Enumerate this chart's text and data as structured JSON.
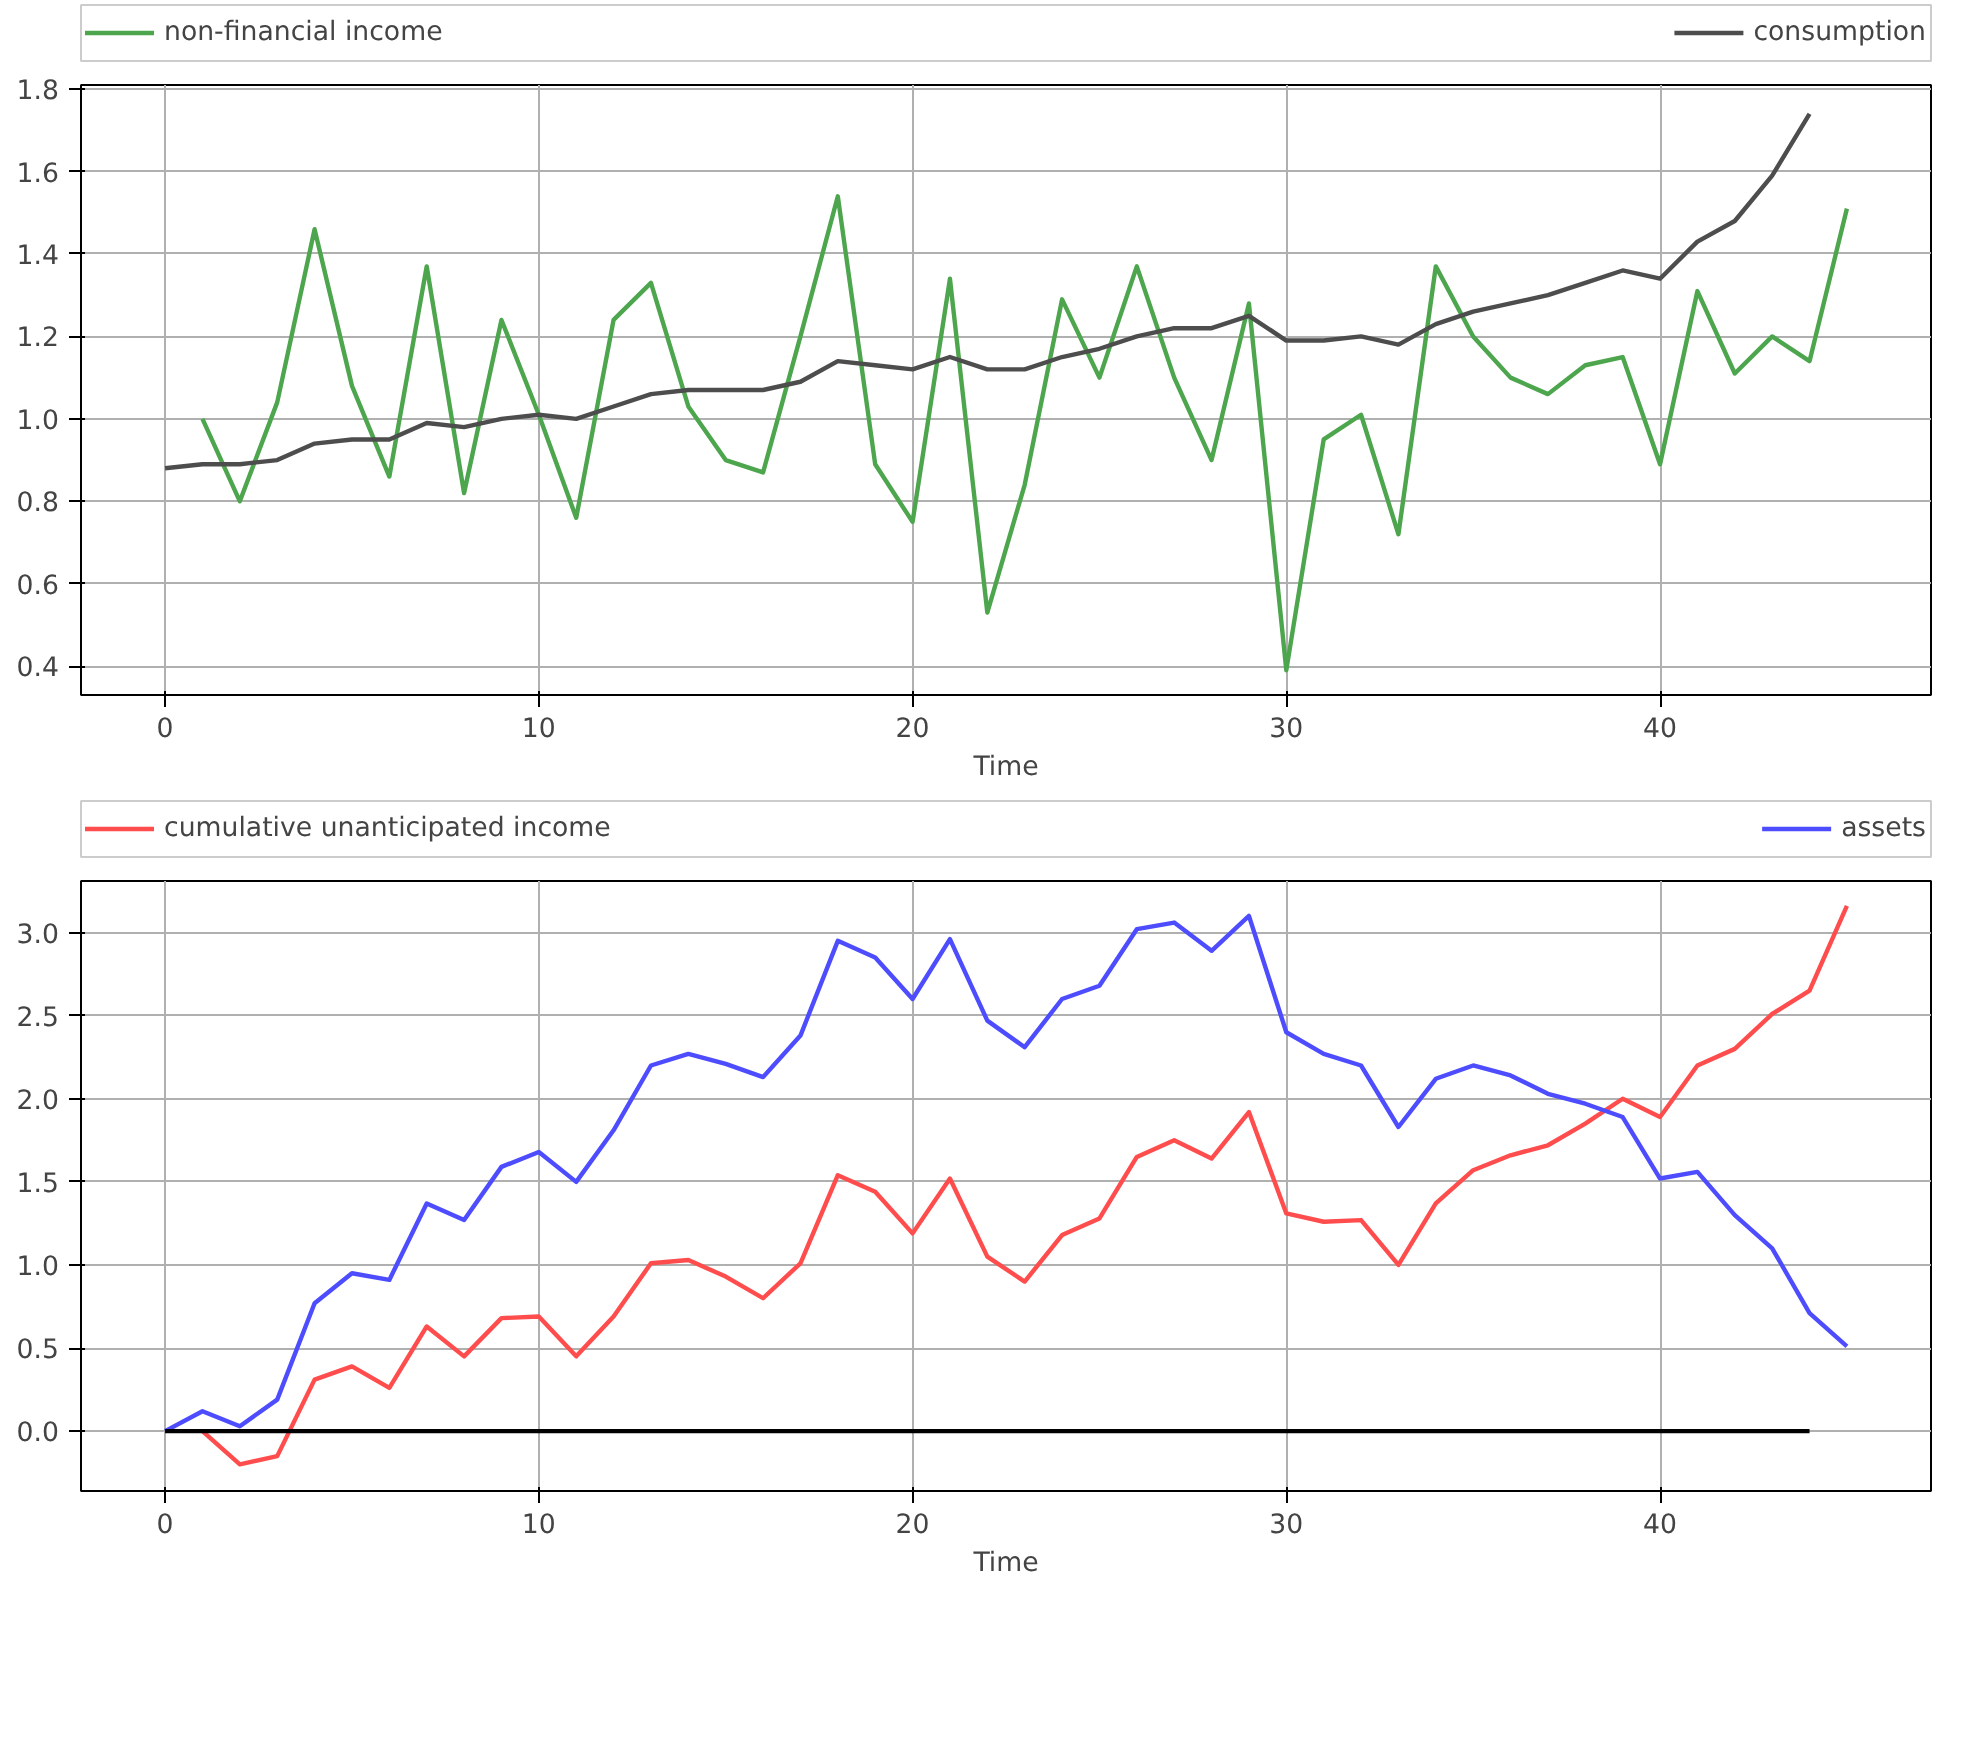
{
  "chart_data": [
    {
      "type": "line",
      "xlabel": "Time",
      "xlim": [
        -2.25,
        47.25
      ],
      "ylim": [
        0.33,
        1.81
      ],
      "xticks": [
        0,
        10,
        20,
        30,
        40
      ],
      "yticks": [
        0.4,
        0.6,
        0.8,
        {
          "value": 1,
          "label": "1.0"
        },
        1.2,
        1.4,
        1.6,
        1.8
      ],
      "grid": true,
      "legend": "top",
      "line_style": "solid",
      "series": [
        {
          "name": "non-financial income",
          "color": "#4da64d",
          "x": [
            1,
            2,
            3,
            4,
            5,
            6,
            7,
            8,
            9,
            10,
            11,
            12,
            13,
            14,
            15,
            16,
            17,
            18,
            19,
            20,
            21,
            22,
            23,
            24,
            25,
            26,
            27,
            28,
            29,
            30,
            31,
            32,
            33,
            34,
            35,
            36,
            37,
            38,
            39,
            40,
            41,
            42,
            43,
            44,
            45
          ],
          "values": [
            1.0,
            0.8,
            1.04,
            1.46,
            1.08,
            0.86,
            1.37,
            0.82,
            1.24,
            1.01,
            0.76,
            1.24,
            1.33,
            1.03,
            0.9,
            0.87,
            1.2,
            1.54,
            0.89,
            0.75,
            1.34,
            0.53,
            0.84,
            1.29,
            1.1,
            1.37,
            1.1,
            0.9,
            1.28,
            0.39,
            0.95,
            1.01,
            0.72,
            1.37,
            1.2,
            1.1,
            1.06,
            1.13,
            1.15,
            0.89,
            1.31,
            1.11,
            1.2,
            1.14,
            1.51
          ]
        },
        {
          "name": "consumption",
          "color": "#4d4d4d",
          "x": [
            0,
            1,
            2,
            3,
            4,
            5,
            6,
            7,
            8,
            9,
            10,
            11,
            12,
            13,
            14,
            15,
            16,
            17,
            18,
            19,
            20,
            21,
            22,
            23,
            24,
            25,
            26,
            27,
            28,
            29,
            30,
            31,
            32,
            33,
            34,
            35,
            36,
            37,
            38,
            39,
            40,
            41,
            42,
            43,
            44
          ],
          "values": [
            0.88,
            0.89,
            0.89,
            0.9,
            0.94,
            0.95,
            0.95,
            0.99,
            0.98,
            1.0,
            1.01,
            1.0,
            1.03,
            1.06,
            1.07,
            1.07,
            1.07,
            1.09,
            1.14,
            1.13,
            1.12,
            1.15,
            1.12,
            1.12,
            1.15,
            1.17,
            1.2,
            1.22,
            1.22,
            1.25,
            1.19,
            1.19,
            1.2,
            1.18,
            1.23,
            1.26,
            1.28,
            1.3,
            1.33,
            1.36,
            1.34,
            1.43,
            1.48,
            1.59,
            1.74
          ]
        }
      ]
    },
    {
      "type": "line",
      "xlabel": "Time",
      "xlim": [
        -2.25,
        47.25
      ],
      "ylim": [
        -0.36,
        3.31
      ],
      "xticks": [
        0,
        10,
        20,
        30,
        40
      ],
      "yticks": [
        {
          "value": 0,
          "label": "0.0"
        },
        0.5,
        {
          "value": 1,
          "label": "1.0"
        },
        1.5,
        {
          "value": 2,
          "label": "2.0"
        },
        2.5,
        {
          "value": 3,
          "label": "3.0"
        }
      ],
      "grid": true,
      "legend": "top",
      "line_style": "solid",
      "series": [
        {
          "name": "cumulative unanticipated income",
          "color": "#ff4d4d",
          "x": [
            1,
            2,
            3,
            4,
            5,
            6,
            7,
            8,
            9,
            10,
            11,
            12,
            13,
            14,
            15,
            16,
            17,
            18,
            19,
            20,
            21,
            22,
            23,
            24,
            25,
            26,
            27,
            28,
            29,
            30,
            31,
            32,
            33,
            34,
            35,
            36,
            37,
            38,
            39,
            40,
            41,
            42,
            43,
            44,
            45
          ],
          "values": [
            0.0,
            -0.2,
            -0.15,
            0.31,
            0.39,
            0.26,
            0.63,
            0.45,
            0.68,
            0.69,
            0.45,
            0.69,
            1.01,
            1.03,
            0.93,
            0.8,
            1.01,
            1.54,
            1.44,
            1.19,
            1.52,
            1.05,
            0.9,
            1.18,
            1.28,
            1.65,
            1.75,
            1.64,
            1.92,
            1.31,
            1.26,
            1.27,
            1.0,
            1.37,
            1.57,
            1.66,
            1.72,
            1.85,
            2.0,
            1.89,
            2.2,
            2.3,
            2.51,
            2.65,
            3.16
          ]
        },
        {
          "name": "assets",
          "color": "#4d4dff",
          "x": [
            0,
            1,
            2,
            3,
            4,
            5,
            6,
            7,
            8,
            9,
            10,
            11,
            12,
            13,
            14,
            15,
            16,
            17,
            18,
            19,
            20,
            21,
            22,
            23,
            24,
            25,
            26,
            27,
            28,
            29,
            30,
            31,
            32,
            33,
            34,
            35,
            36,
            37,
            38,
            39,
            40,
            41,
            42,
            43,
            44,
            45
          ],
          "values": [
            0.0,
            0.12,
            0.03,
            0.19,
            0.77,
            0.95,
            0.91,
            1.37,
            1.27,
            1.59,
            1.68,
            1.5,
            1.81,
            2.2,
            2.27,
            2.21,
            2.13,
            2.38,
            2.95,
            2.85,
            2.6,
            2.96,
            2.47,
            2.31,
            2.6,
            2.68,
            3.02,
            3.06,
            2.89,
            3.1,
            2.4,
            2.27,
            2.2,
            1.83,
            2.12,
            2.2,
            2.14,
            2.03,
            1.97,
            1.89,
            1.52,
            1.56,
            1.3,
            1.1,
            0.71,
            0.51
          ]
        },
        {
          "color": "#000000",
          "x": [
            0,
            44
          ],
          "values": [
            0,
            0
          ]
        }
      ]
    }
  ]
}
